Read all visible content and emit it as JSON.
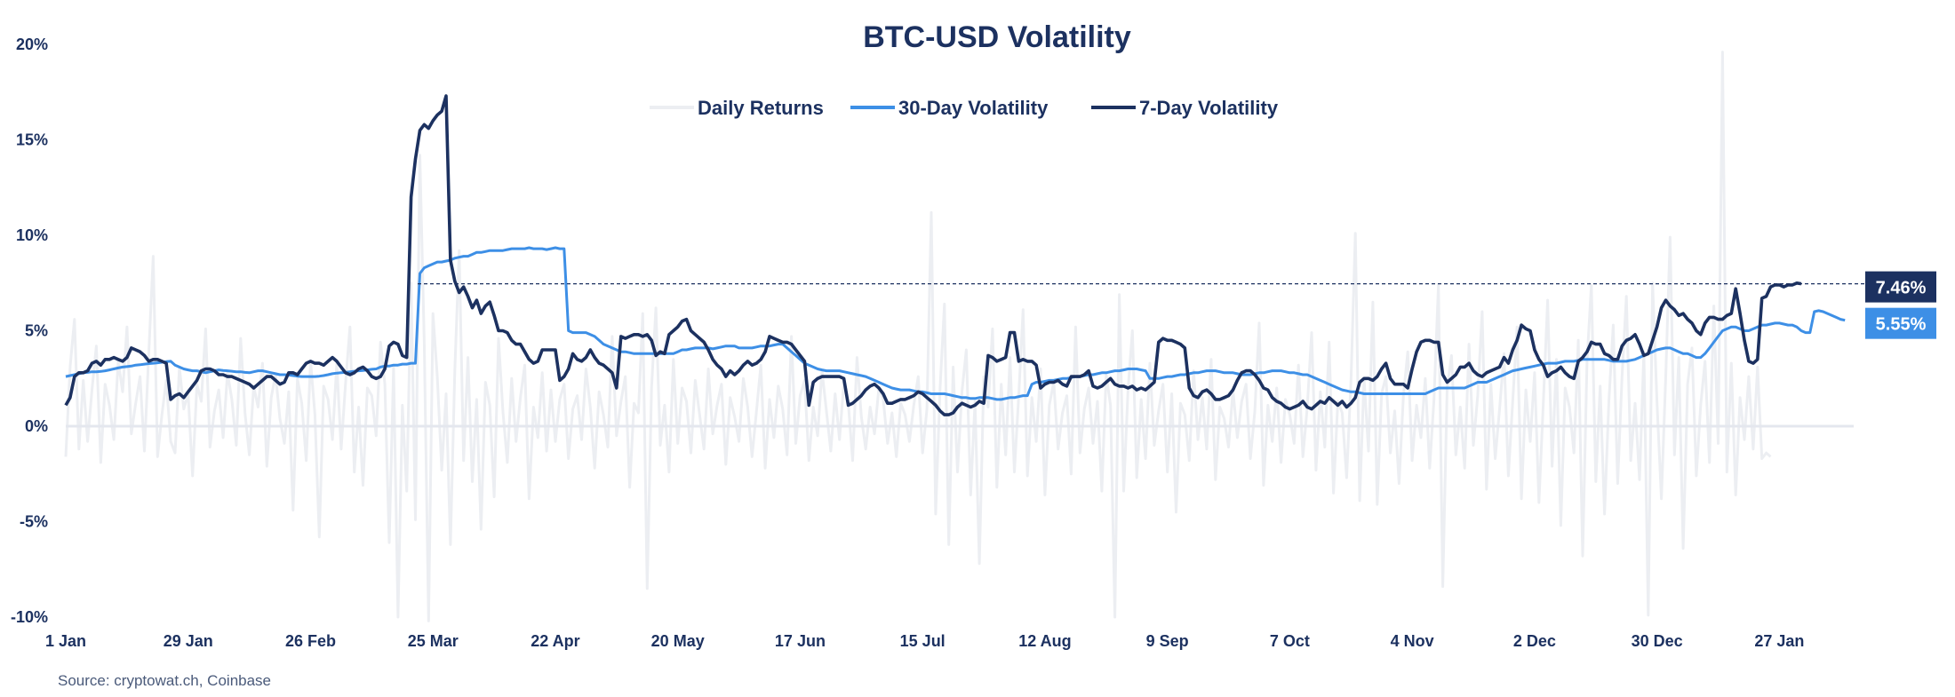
{
  "chart_data": {
    "type": "line",
    "title": "BTC-USD Volatility",
    "source": "Source: cryptowat.ch, Coinbase",
    "ylim": [
      -10,
      20
    ],
    "yticks": [
      -10,
      -5,
      0,
      5,
      10,
      15,
      20
    ],
    "ytick_labels": [
      "-10%",
      "-5%",
      "0%",
      "5%",
      "10%",
      "15%",
      "20%"
    ],
    "xticks": [
      "1 Jan",
      "29 Jan",
      "26 Feb",
      "25 Mar",
      "22 Apr",
      "20 May",
      "17 Jun",
      "15 Jul",
      "12 Aug",
      "9 Sep",
      "7 Oct",
      "4 Nov",
      "2 Dec",
      "30 Dec",
      "27 Jan"
    ],
    "xtick_day_index": [
      0,
      28,
      56,
      84,
      112,
      140,
      168,
      196,
      224,
      252,
      280,
      308,
      336,
      364,
      392
    ],
    "num_days": 410,
    "grid": false,
    "legend_position": "top-center",
    "colors": {
      "daily_returns": "#eceef2",
      "vol30": "#3d8fe6",
      "vol7": "#1c3160",
      "zero_line": "#e4e7ee",
      "ref_line": "#1c3160",
      "text": "#1c3160"
    },
    "series": [
      {
        "name": "Daily Returns",
        "values": [
          -1.6,
          3.1,
          5.6,
          -1.2,
          2.4,
          -0.8,
          1.9,
          4.2,
          -1.9,
          2.2,
          1.1,
          -0.7,
          3.4,
          1.8,
          5.2,
          -0.4,
          1.2,
          2.6,
          -1.3,
          3.9,
          8.9,
          -1.6,
          0.6,
          2.4,
          -0.8,
          -1.4,
          3.1,
          0.9,
          1.7,
          -2.6,
          2.2,
          1.3,
          5.1,
          -1.1,
          0.8,
          1.9,
          -0.6,
          2.8,
          1.4,
          -1.0,
          4.6,
          0.7,
          -1.5,
          2.1,
          1.0,
          3.3,
          -2.1,
          1.5,
          2.7,
          0.4,
          -0.9,
          1.8,
          -4.4,
          2.5,
          1.2,
          -1.8,
          3.4,
          0.6,
          -5.8,
          2.1,
          1.4,
          -0.7,
          3.3,
          -1.2,
          2.2,
          5.2,
          -2.4,
          1.0,
          -3.1,
          2.0,
          1.6,
          -0.5,
          4.4,
          2.2,
          -6.1,
          3.1,
          -10.0,
          1.1,
          -3.4,
          7.5,
          -4.9,
          14.2,
          4.4,
          -10.2,
          5.9,
          2.6,
          -2.3,
          1.7,
          -6.2,
          2.9,
          9.2,
          -1.8,
          3.6,
          -2.9,
          1.4,
          -5.4,
          2.3,
          1.1,
          -3.7,
          4.6,
          0.8,
          -1.9,
          2.5,
          -0.8,
          1.5,
          3.2,
          -3.8,
          1.0,
          -0.6,
          2.8,
          -1.3,
          1.9,
          -0.8,
          1.4,
          2.2,
          -1.7,
          0.9,
          1.6,
          -0.7,
          3.0,
          1.0,
          -2.2,
          1.8,
          0.6,
          -1.1,
          4.7,
          -0.5,
          1.3,
          2.6,
          -3.2,
          1.2,
          0.7,
          5.9,
          -8.5,
          2.0,
          6.2,
          -1.0,
          1.1,
          -2.4,
          3.5,
          -0.9,
          2.0,
          1.3,
          -1.4,
          2.4,
          0.6,
          -1.2,
          3.0,
          -0.4,
          1.1,
          2.2,
          -2.0,
          1.5,
          0.5,
          -0.8,
          2.5,
          1.0,
          -1.6,
          0.8,
          3.2,
          -2.2,
          1.4,
          -0.6,
          2.1,
          0.9,
          -1.5,
          4.7,
          -0.9,
          1.6,
          2.4,
          -1.8,
          1.0,
          -0.5,
          2.9,
          0.8,
          -1.3,
          1.7,
          -0.7,
          2.3,
          1.2,
          -1.8,
          3.6,
          0.5,
          -1.2,
          1.0,
          -0.4,
          2.0,
          1.4,
          -0.9,
          0.7,
          -1.6,
          1.2,
          0.6,
          -0.8,
          1.1,
          2.6,
          -1.4,
          0.9,
          11.2,
          -4.6,
          2.0,
          6.4,
          -6.2,
          3.1,
          -2.4,
          1.8,
          4.0,
          -3.6,
          1.3,
          -7.2,
          2.6,
          1.0,
          5.1,
          -3.2,
          2.2,
          -1.5,
          3.6,
          -2.4,
          1.6,
          6.1,
          -2.6,
          1.5,
          -0.8,
          3.0,
          -3.6,
          1.1,
          2.3,
          -1.2,
          0.7,
          1.6,
          -2.5,
          5.2,
          -1.4,
          0.9,
          2.0,
          -0.9,
          1.3,
          -3.4,
          2.7,
          1.1,
          -10.0,
          6.9,
          -3.4,
          1.9,
          5.0,
          -2.7,
          1.4,
          -1.7,
          3.3,
          -1.0,
          0.8,
          2.2,
          -2.4,
          1.7,
          -4.5,
          1.2,
          0.6,
          -1.8,
          2.9,
          -0.7,
          1.5,
          -1.2,
          3.5,
          -2.8,
          1.0,
          0.4,
          -1.1,
          1.9,
          -0.6,
          1.3,
          2.2,
          -1.7,
          0.8,
          5.4,
          -3.1,
          1.1,
          -0.8,
          2.0,
          -1.9,
          1.4,
          0.6,
          -0.9,
          3.2,
          -1.6,
          1.0,
          4.9,
          -2.3,
          1.8,
          -1.1,
          4.4,
          -3.5,
          1.3,
          0.7,
          -2.7,
          2.4,
          10.1,
          -3.9,
          2.5,
          -1.3,
          6.5,
          -4.1,
          1.7,
          2.6,
          -1.4,
          0.8,
          -3.0,
          1.6,
          3.9,
          -1.8,
          1.1,
          -0.6,
          2.5,
          -2.2,
          1.4,
          7.4,
          -8.4,
          2.0,
          3.7,
          -1.5,
          1.0,
          -2.2,
          4.3,
          -1.0,
          1.6,
          6.0,
          -3.3,
          2.2,
          -1.7,
          0.9,
          3.8,
          -2.6,
          1.3,
          5.2,
          -3.8,
          1.9,
          -0.8,
          2.8,
          -4.0,
          1.2,
          6.6,
          -2.1,
          3.5,
          -5.2,
          2.0,
          1.0,
          -1.4,
          4.5,
          -6.8,
          3.4,
          7.4,
          -2.9,
          2.1,
          -4.6,
          1.3,
          5.3,
          -3.0,
          2.6,
          6.8,
          -1.8,
          1.2,
          -2.8,
          3.9,
          -9.9,
          7.5,
          1.3,
          -3.8,
          2.6,
          9.9,
          -1.5,
          3.6,
          -6.4,
          2.2,
          4.1,
          -2.6,
          1.1,
          3.4,
          -1.9,
          6.3,
          -0.9,
          19.6,
          -2.4,
          3.3,
          -3.6,
          1.5,
          -0.7,
          2.6,
          -1.2,
          3.1,
          -1.7,
          -1.4,
          -1.6
        ]
      },
      {
        "name": "30-Day Volatility",
        "values": [
          2.6,
          2.65,
          2.7,
          2.75,
          2.8,
          2.82,
          2.85,
          2.85,
          2.87,
          2.9,
          2.95,
          3.0,
          3.05,
          3.1,
          3.12,
          3.15,
          3.2,
          3.22,
          3.25,
          3.28,
          3.3,
          3.32,
          3.35,
          3.38,
          3.4,
          3.2,
          3.1,
          3.0,
          2.95,
          2.9,
          2.9,
          2.85,
          2.8,
          2.85,
          2.9,
          2.95,
          2.92,
          2.9,
          2.88,
          2.85,
          2.85,
          2.82,
          2.8,
          2.85,
          2.9,
          2.9,
          2.85,
          2.8,
          2.75,
          2.7,
          2.7,
          2.68,
          2.65,
          2.62,
          2.6,
          2.6,
          2.6,
          2.6,
          2.62,
          2.65,
          2.7,
          2.75,
          2.78,
          2.8,
          2.82,
          2.85,
          2.88,
          2.9,
          2.92,
          2.95,
          2.98,
          3.0,
          3.1,
          3.15,
          3.15,
          3.2,
          3.2,
          3.25,
          3.25,
          3.3,
          3.3,
          8.0,
          8.3,
          8.4,
          8.5,
          8.6,
          8.6,
          8.65,
          8.7,
          8.8,
          8.85,
          8.9,
          8.9,
          9.0,
          9.1,
          9.1,
          9.15,
          9.2,
          9.2,
          9.2,
          9.2,
          9.25,
          9.3,
          9.3,
          9.3,
          9.3,
          9.35,
          9.3,
          9.3,
          9.3,
          9.25,
          9.3,
          9.35,
          9.3,
          9.3,
          5.0,
          4.9,
          4.9,
          4.9,
          4.9,
          4.8,
          4.7,
          4.5,
          4.3,
          4.2,
          4.1,
          4.0,
          3.9,
          3.9,
          3.85,
          3.8,
          3.8,
          3.8,
          3.8,
          3.8,
          3.8,
          3.8,
          3.8,
          3.8,
          3.8,
          3.9,
          4.0,
          4.0,
          4.05,
          4.1,
          4.1,
          4.1,
          4.1,
          4.05,
          4.1,
          4.15,
          4.2,
          4.2,
          4.2,
          4.1,
          4.1,
          4.1,
          4.1,
          4.15,
          4.2,
          4.2,
          4.2,
          4.25,
          4.3,
          4.3,
          4.1,
          3.9,
          3.7,
          3.5,
          3.3,
          3.2,
          3.1,
          3.0,
          2.95,
          2.9,
          2.9,
          2.9,
          2.9,
          2.85,
          2.8,
          2.75,
          2.7,
          2.65,
          2.6,
          2.5,
          2.4,
          2.3,
          2.2,
          2.1,
          2.0,
          1.95,
          1.9,
          1.9,
          1.9,
          1.85,
          1.8,
          1.8,
          1.75,
          1.7,
          1.7,
          1.7,
          1.7,
          1.65,
          1.6,
          1.55,
          1.5,
          1.5,
          1.45,
          1.45,
          1.5,
          1.5,
          1.5,
          1.45,
          1.4,
          1.4,
          1.45,
          1.5,
          1.5,
          1.55,
          1.6,
          1.6,
          2.2,
          2.3,
          2.3,
          2.35,
          2.4,
          2.4,
          2.45,
          2.5,
          2.5,
          2.55,
          2.6,
          2.6,
          2.65,
          2.7,
          2.7,
          2.75,
          2.8,
          2.8,
          2.85,
          2.9,
          2.9,
          2.95,
          3.0,
          3.0,
          3.0,
          2.95,
          2.9,
          2.5,
          2.5,
          2.5,
          2.55,
          2.6,
          2.6,
          2.65,
          2.7,
          2.7,
          2.75,
          2.8,
          2.8,
          2.85,
          2.9,
          2.9,
          2.9,
          2.85,
          2.8,
          2.8,
          2.8,
          2.75,
          2.7,
          2.7,
          2.7,
          2.75,
          2.8,
          2.8,
          2.85,
          2.9,
          2.9,
          2.9,
          2.85,
          2.8,
          2.8,
          2.75,
          2.7,
          2.7,
          2.6,
          2.5,
          2.4,
          2.3,
          2.2,
          2.1,
          2.0,
          1.9,
          1.85,
          1.8,
          1.8,
          1.75,
          1.7,
          1.7,
          1.7,
          1.7,
          1.7,
          1.7,
          1.7,
          1.7,
          1.7,
          1.7,
          1.7,
          1.7,
          1.7,
          1.7,
          1.7,
          1.8,
          1.9,
          2.0,
          2.0,
          2.0,
          2.0,
          2.0,
          2.0,
          2.0,
          2.1,
          2.2,
          2.3,
          2.3,
          2.3,
          2.4,
          2.5,
          2.6,
          2.7,
          2.8,
          2.9,
          2.95,
          3.0,
          3.05,
          3.1,
          3.15,
          3.2,
          3.25,
          3.3,
          3.3,
          3.3,
          3.35,
          3.4,
          3.4,
          3.4,
          3.45,
          3.5,
          3.5,
          3.5,
          3.5,
          3.5,
          3.5,
          3.45,
          3.4,
          3.4,
          3.4,
          3.4,
          3.45,
          3.5,
          3.6,
          3.7,
          3.8,
          3.9,
          4.0,
          4.05,
          4.1,
          4.1,
          4.0,
          3.9,
          3.8,
          3.8,
          3.7,
          3.6,
          3.6,
          3.8,
          4.1,
          4.4,
          4.7,
          5.0,
          5.1,
          5.2,
          5.2,
          5.1,
          5.0,
          5.0,
          5.1,
          5.2,
          5.3,
          5.3,
          5.35,
          5.4,
          5.4,
          5.35,
          5.3,
          5.3,
          5.2,
          5.0,
          4.9,
          4.9,
          6.0,
          6.05,
          6.0,
          5.9,
          5.8,
          5.7,
          5.6,
          5.55
        ]
      },
      {
        "name": "7-Day Volatility",
        "values": [
          1.1,
          1.5,
          2.6,
          2.8,
          2.8,
          2.9,
          3.3,
          3.4,
          3.2,
          3.5,
          3.5,
          3.6,
          3.5,
          3.4,
          3.6,
          4.1,
          4.0,
          3.9,
          3.7,
          3.4,
          3.5,
          3.5,
          3.4,
          3.3,
          1.4,
          1.6,
          1.7,
          1.5,
          1.8,
          2.1,
          2.4,
          2.9,
          3.0,
          3.0,
          2.9,
          2.7,
          2.7,
          2.6,
          2.6,
          2.5,
          2.4,
          2.3,
          2.2,
          2.0,
          2.2,
          2.4,
          2.6,
          2.6,
          2.4,
          2.2,
          2.3,
          2.8,
          2.8,
          2.7,
          3.0,
          3.3,
          3.4,
          3.3,
          3.3,
          3.2,
          3.4,
          3.6,
          3.4,
          3.1,
          2.8,
          2.7,
          2.8,
          3.0,
          3.1,
          2.9,
          2.6,
          2.5,
          2.6,
          3.0,
          4.2,
          4.4,
          4.3,
          3.7,
          3.6,
          12.0,
          14.0,
          15.5,
          15.8,
          15.6,
          16.0,
          16.3,
          16.5,
          17.3,
          8.7,
          7.6,
          7.0,
          7.3,
          6.8,
          6.2,
          6.6,
          5.9,
          6.3,
          6.5,
          5.8,
          5.0,
          5.0,
          4.9,
          4.5,
          4.3,
          4.3,
          3.9,
          3.5,
          3.3,
          3.4,
          4.0,
          4.0,
          4.0,
          4.0,
          2.4,
          2.6,
          3.0,
          3.8,
          3.5,
          3.4,
          3.6,
          4.0,
          3.6,
          3.3,
          3.2,
          3.0,
          2.8,
          2.0,
          4.7,
          4.6,
          4.7,
          4.8,
          4.8,
          4.7,
          4.8,
          4.5,
          3.7,
          3.9,
          3.8,
          4.8,
          5.0,
          5.2,
          5.5,
          5.6,
          5.0,
          4.8,
          4.6,
          4.4,
          4.0,
          3.5,
          3.2,
          3.0,
          2.6,
          2.9,
          2.7,
          2.9,
          3.2,
          3.4,
          3.2,
          3.3,
          3.5,
          3.9,
          4.7,
          4.6,
          4.5,
          4.4,
          4.4,
          4.3,
          4.0,
          3.7,
          3.4,
          1.1,
          2.3,
          2.5,
          2.6,
          2.6,
          2.6,
          2.6,
          2.6,
          2.5,
          1.1,
          1.2,
          1.4,
          1.6,
          1.9,
          2.1,
          2.2,
          2.0,
          1.7,
          1.2,
          1.2,
          1.3,
          1.4,
          1.4,
          1.5,
          1.6,
          1.8,
          1.7,
          1.5,
          1.3,
          1.1,
          0.8,
          0.6,
          0.6,
          0.7,
          1.0,
          1.2,
          1.1,
          1.0,
          1.1,
          1.3,
          1.2,
          3.7,
          3.6,
          3.4,
          3.5,
          3.6,
          4.9,
          4.9,
          3.4,
          3.5,
          3.4,
          3.4,
          3.2,
          2.0,
          2.2,
          2.3,
          2.3,
          2.4,
          2.2,
          2.1,
          2.6,
          2.6,
          2.6,
          2.7,
          2.9,
          2.1,
          2.0,
          2.1,
          2.3,
          2.5,
          2.2,
          2.1,
          2.1,
          2.0,
          2.1,
          1.9,
          2.0,
          1.9,
          2.1,
          2.3,
          4.4,
          4.6,
          4.5,
          4.5,
          4.4,
          4.3,
          4.1,
          2.0,
          1.6,
          1.5,
          1.8,
          1.9,
          1.7,
          1.4,
          1.4,
          1.5,
          1.6,
          1.9,
          2.4,
          2.8,
          2.9,
          2.9,
          2.7,
          2.4,
          2.0,
          1.9,
          1.5,
          1.3,
          1.2,
          1.0,
          0.9,
          1.0,
          1.1,
          1.3,
          1.0,
          0.9,
          1.1,
          1.3,
          1.2,
          1.5,
          1.3,
          1.1,
          1.3,
          1.0,
          1.2,
          1.5,
          2.3,
          2.5,
          2.5,
          2.4,
          2.6,
          3.0,
          3.3,
          2.5,
          2.2,
          2.2,
          2.2,
          2.0,
          3.0,
          3.9,
          4.4,
          4.5,
          4.5,
          4.4,
          4.4,
          2.7,
          2.3,
          2.5,
          2.7,
          3.1,
          3.1,
          3.3,
          2.9,
          2.7,
          2.6,
          2.8,
          2.9,
          3.0,
          3.1,
          3.6,
          3.3,
          4.0,
          4.5,
          5.3,
          5.1,
          5.0,
          4.0,
          3.5,
          3.2,
          2.6,
          2.8,
          2.9,
          3.1,
          2.8,
          2.6,
          2.5,
          3.4,
          3.6,
          3.9,
          4.4,
          4.3,
          4.3,
          3.8,
          3.7,
          3.5,
          3.5,
          4.2,
          4.5,
          4.6,
          4.8,
          4.3,
          3.7,
          3.8,
          4.5,
          5.2,
          6.2,
          6.6,
          6.3,
          6.1,
          5.8,
          5.9,
          5.6,
          5.4,
          5.0,
          4.8,
          5.4,
          5.7,
          5.7,
          5.6,
          5.6,
          5.8,
          5.9,
          7.2,
          5.9,
          4.5,
          3.4,
          3.3,
          3.5,
          6.7,
          6.8,
          7.3,
          7.4,
          7.4,
          7.3,
          7.4,
          7.4,
          7.5,
          7.46
        ]
      }
    ],
    "last_value_labels": [
      {
        "series": "7-Day Volatility",
        "text": "7.46%",
        "value": 7.46
      },
      {
        "series": "30-Day Volatility",
        "text": "5.55%",
        "value": 5.55
      }
    ]
  }
}
